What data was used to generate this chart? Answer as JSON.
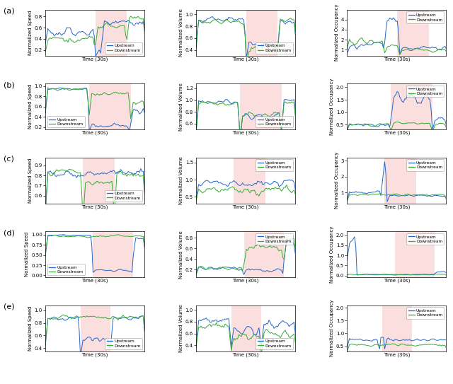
{
  "nrows": 5,
  "ncols": 3,
  "col_ylabels": [
    "Normalized Speed",
    "Normalized Volume",
    "Normalized Occupancy"
  ],
  "xlabel": "Time (30s)",
  "row_labels": [
    "(a)",
    "(b)",
    "(c)",
    "(d)",
    "(e)"
  ],
  "blue_color": "#2266cc",
  "green_color": "#33aa33",
  "shade_color": "#f9c8c8",
  "shade_alpha": 0.6,
  "n_points": 80,
  "ytick_configs": [
    [
      [
        0.2,
        0.4,
        0.6,
        0.8
      ],
      [
        0.4,
        0.6,
        0.8,
        1.0
      ],
      [
        1,
        2,
        3,
        4
      ]
    ],
    [
      [
        0.2,
        0.4,
        0.6,
        0.8,
        1.0
      ],
      [
        0.6,
        0.8,
        1.0,
        1.2
      ],
      [
        0.5,
        1.0,
        1.5,
        2.0
      ]
    ],
    [
      [
        0.6,
        0.7,
        0.8,
        0.9
      ],
      [
        0.5,
        1.0,
        1.5
      ],
      [
        1,
        2,
        3
      ]
    ],
    [
      [
        0.0,
        0.25,
        0.5,
        0.75,
        1.0
      ],
      [
        0.2,
        0.4,
        0.6,
        0.8
      ],
      [
        0.0,
        0.5,
        1.0,
        1.5,
        2.0
      ]
    ],
    [
      [
        0.4,
        0.6,
        0.8,
        1.0
      ],
      [
        0.4,
        0.6,
        0.8,
        1.0
      ],
      [
        0.5,
        1.0,
        1.5,
        2.0
      ]
    ]
  ],
  "ylim_configs": [
    [
      [
        0.1,
        0.92
      ],
      [
        0.3,
        1.08
      ],
      [
        0.4,
        5.0
      ]
    ],
    [
      [
        0.15,
        1.05
      ],
      [
        0.5,
        1.28
      ],
      [
        0.3,
        2.15
      ]
    ],
    [
      [
        0.52,
        0.98
      ],
      [
        0.3,
        1.65
      ],
      [
        0.3,
        3.2
      ]
    ],
    [
      [
        -0.05,
        1.08
      ],
      [
        0.05,
        0.92
      ],
      [
        -0.1,
        2.2
      ]
    ],
    [
      [
        0.35,
        1.08
      ],
      [
        0.3,
        1.08
      ],
      [
        0.3,
        2.1
      ]
    ]
  ],
  "shade_ranges": [
    [
      40,
      65
    ],
    [
      35,
      68
    ],
    [
      30,
      55
    ],
    [
      38,
      70
    ],
    [
      28,
      52
    ]
  ],
  "legend_locs": [
    [
      "lower right",
      "lower right",
      "upper right"
    ],
    [
      "lower left",
      "lower right",
      "upper right"
    ],
    [
      "lower right",
      "upper right",
      "upper right"
    ],
    [
      "lower left",
      "upper right",
      "upper right"
    ],
    [
      "lower right",
      "lower right",
      "upper right"
    ]
  ]
}
